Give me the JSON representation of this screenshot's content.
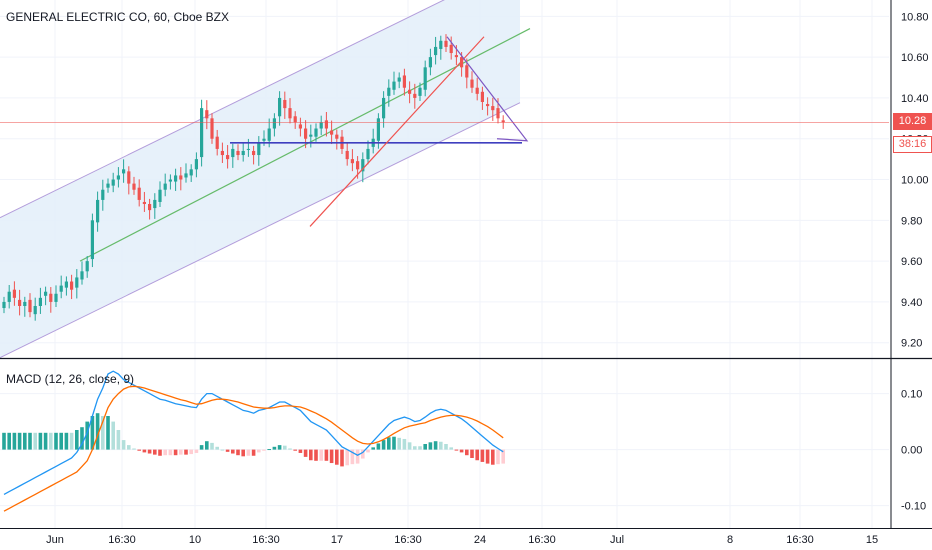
{
  "title": "GENERAL ELECTRIC CO, 60, Cboe BZX",
  "last_price": "10.28",
  "countdown": "38:16",
  "colors": {
    "up": "#26a69a",
    "down": "#ef5350",
    "up_light": "#b2dfdb",
    "down_light": "#ffcdd2",
    "macd": "#2196f3",
    "signal": "#ff6d00",
    "channel_fill": "#e3eef9",
    "channel_border": "#b39ddb",
    "channel_mid": "#66bb6a",
    "trend_red": "#ef5350",
    "support_blue": "#3f3fbf",
    "triangle": "#7e57c2"
  },
  "chart_data": [
    {
      "type": "candlestick",
      "name": "price",
      "x_ticks": [
        "Jun",
        "16:30",
        "10",
        "16:30",
        "17",
        "16:30",
        "24",
        "16:30",
        "Jul",
        "8",
        "16:30",
        "15"
      ],
      "y_ticks": [
        "10.80",
        "10.60",
        "10.40",
        "10.20",
        "10.00",
        "9.80",
        "9.60",
        "9.40",
        "9.20"
      ],
      "ylim": [
        9.13,
        10.88
      ],
      "last_price": 10.28,
      "closes": [
        9.4,
        9.45,
        9.42,
        9.38,
        9.4,
        9.35,
        9.38,
        9.42,
        9.45,
        9.4,
        9.44,
        9.48,
        9.5,
        9.46,
        9.52,
        9.55,
        9.6,
        9.8,
        9.9,
        9.95,
        9.98,
        10.0,
        10.02,
        10.05,
        9.98,
        9.95,
        9.9,
        9.88,
        9.85,
        9.9,
        9.95,
        9.98,
        10.0,
        10.02,
        10.0,
        10.03,
        10.05,
        10.1,
        10.35,
        10.3,
        10.2,
        10.15,
        10.12,
        10.1,
        10.15,
        10.12,
        10.14,
        10.15,
        10.12,
        10.18,
        10.2,
        10.25,
        10.3,
        10.4,
        10.35,
        10.3,
        10.28,
        10.25,
        10.2,
        10.22,
        10.25,
        10.28,
        10.25,
        10.22,
        10.2,
        10.15,
        10.1,
        10.08,
        10.05,
        10.1,
        10.15,
        10.2,
        10.3,
        10.4,
        10.45,
        10.48,
        10.5,
        10.45,
        10.42,
        10.4,
        10.45,
        10.55,
        10.6,
        10.65,
        10.68,
        10.65,
        10.62,
        10.6,
        10.55,
        10.5,
        10.45,
        10.42,
        10.38,
        10.36,
        10.34,
        10.3,
        10.28
      ]
    },
    {
      "type": "macd",
      "name": "MACD (12, 26, close, 9)",
      "y_ticks": [
        "0.10",
        "0.00",
        "-0.10"
      ],
      "ylim": [
        -0.14,
        0.16
      ],
      "macd": [
        -0.08,
        -0.075,
        -0.07,
        -0.065,
        -0.06,
        -0.055,
        -0.05,
        -0.045,
        -0.04,
        -0.035,
        -0.03,
        -0.025,
        -0.02,
        -0.015,
        -0.005,
        0.01,
        0.03,
        0.06,
        0.09,
        0.11,
        0.135,
        0.14,
        0.135,
        0.125,
        0.12,
        0.115,
        0.11,
        0.105,
        0.1,
        0.095,
        0.09,
        0.088,
        0.085,
        0.082,
        0.08,
        0.078,
        0.076,
        0.075,
        0.09,
        0.1,
        0.1,
        0.095,
        0.09,
        0.085,
        0.08,
        0.075,
        0.07,
        0.068,
        0.065,
        0.07,
        0.072,
        0.075,
        0.08,
        0.085,
        0.085,
        0.08,
        0.075,
        0.07,
        0.06,
        0.05,
        0.045,
        0.04,
        0.035,
        0.025,
        0.015,
        0.005,
        0.0,
        -0.005,
        -0.01,
        -0.005,
        0.005,
        0.015,
        0.025,
        0.035,
        0.045,
        0.052,
        0.055,
        0.058,
        0.055,
        0.05,
        0.052,
        0.058,
        0.065,
        0.07,
        0.072,
        0.07,
        0.065,
        0.06,
        0.055,
        0.048,
        0.04,
        0.032,
        0.024,
        0.016,
        0.008,
        0.002,
        -0.004
      ],
      "signal": [
        -0.11,
        -0.105,
        -0.1,
        -0.095,
        -0.09,
        -0.085,
        -0.08,
        -0.075,
        -0.07,
        -0.065,
        -0.06,
        -0.055,
        -0.05,
        -0.045,
        -0.04,
        -0.03,
        -0.02,
        0.0,
        0.025,
        0.05,
        0.075,
        0.09,
        0.1,
        0.108,
        0.112,
        0.113,
        0.112,
        0.11,
        0.107,
        0.104,
        0.101,
        0.098,
        0.095,
        0.092,
        0.089,
        0.087,
        0.084,
        0.081,
        0.082,
        0.085,
        0.088,
        0.09,
        0.09,
        0.089,
        0.087,
        0.085,
        0.082,
        0.079,
        0.076,
        0.075,
        0.074,
        0.074,
        0.075,
        0.077,
        0.078,
        0.078,
        0.077,
        0.076,
        0.073,
        0.069,
        0.065,
        0.06,
        0.055,
        0.049,
        0.042,
        0.035,
        0.028,
        0.021,
        0.015,
        0.011,
        0.01,
        0.011,
        0.014,
        0.018,
        0.023,
        0.029,
        0.034,
        0.039,
        0.042,
        0.044,
        0.046,
        0.048,
        0.052,
        0.055,
        0.058,
        0.06,
        0.061,
        0.061,
        0.06,
        0.058,
        0.055,
        0.051,
        0.046,
        0.041,
        0.035,
        0.028,
        0.021
      ]
    }
  ]
}
